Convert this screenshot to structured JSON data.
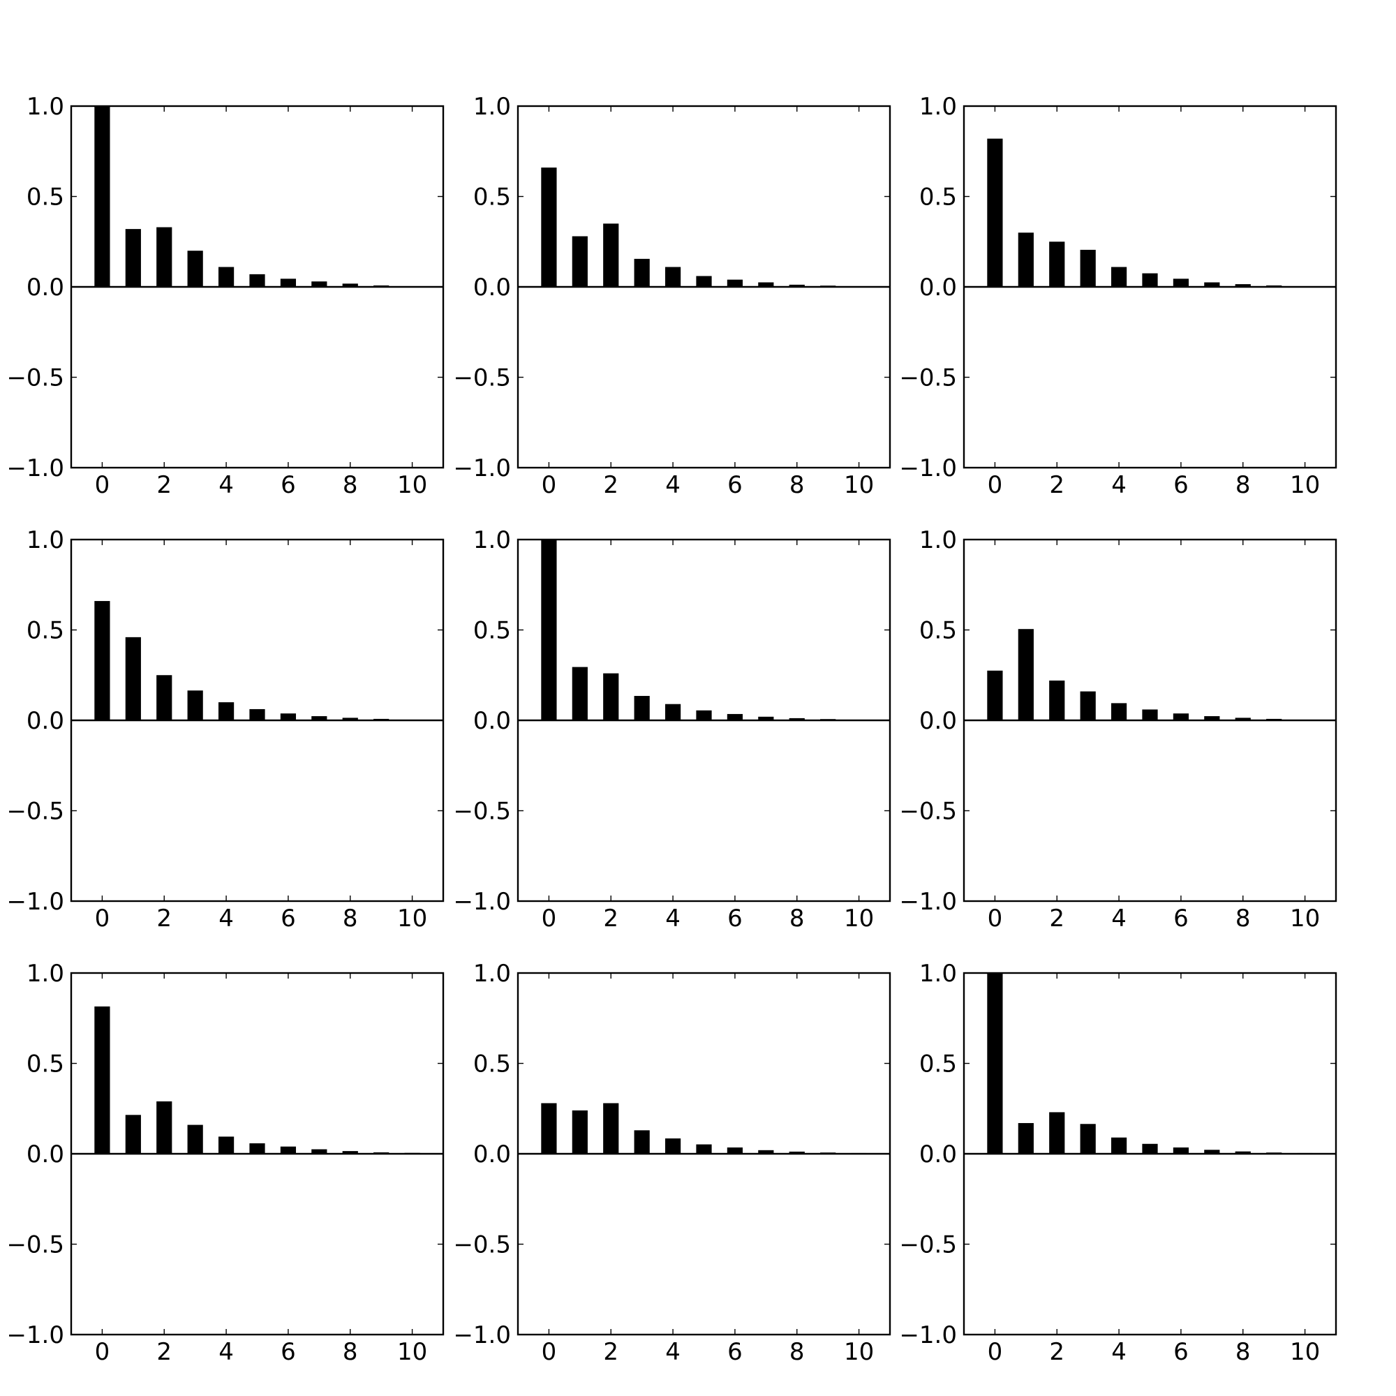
{
  "chart_data": [
    {
      "type": "bar",
      "categories": [
        0,
        1,
        2,
        3,
        4,
        5,
        6,
        7,
        8,
        9,
        10
      ],
      "values": [
        1.0,
        0.32,
        0.33,
        0.2,
        0.11,
        0.07,
        0.045,
        0.03,
        0.018,
        0.008,
        0.002
      ],
      "xticks": [
        "0",
        "2",
        "4",
        "6",
        "8",
        "10"
      ],
      "yticks": [
        "1.0",
        "0.5",
        "0.0",
        "−0.5",
        "−1.0"
      ],
      "xlim": [
        -1,
        11
      ],
      "ylim": [
        -1,
        1
      ],
      "grid": false
    },
    {
      "type": "bar",
      "categories": [
        0,
        1,
        2,
        3,
        4,
        5,
        6,
        7,
        8,
        9,
        10
      ],
      "values": [
        0.66,
        0.28,
        0.35,
        0.155,
        0.11,
        0.06,
        0.04,
        0.025,
        0.012,
        0.007,
        0.002
      ],
      "xticks": [
        "0",
        "2",
        "4",
        "6",
        "8",
        "10"
      ],
      "yticks": [
        "1.0",
        "0.5",
        "0.0",
        "−0.5",
        "−1.0"
      ],
      "xlim": [
        -1,
        11
      ],
      "ylim": [
        -1,
        1
      ],
      "grid": false
    },
    {
      "type": "bar",
      "categories": [
        0,
        1,
        2,
        3,
        4,
        5,
        6,
        7,
        8,
        9,
        10
      ],
      "values": [
        0.82,
        0.3,
        0.25,
        0.205,
        0.11,
        0.075,
        0.045,
        0.025,
        0.015,
        0.008,
        0.002
      ],
      "xticks": [
        "0",
        "2",
        "4",
        "6",
        "8",
        "10"
      ],
      "yticks": [
        "1.0",
        "0.5",
        "0.0",
        "−0.5",
        "−1.0"
      ],
      "xlim": [
        -1,
        11
      ],
      "ylim": [
        -1,
        1
      ],
      "grid": false
    },
    {
      "type": "bar",
      "categories": [
        0,
        1,
        2,
        3,
        4,
        5,
        6,
        7,
        8,
        9,
        10
      ],
      "values": [
        0.66,
        0.46,
        0.25,
        0.165,
        0.1,
        0.062,
        0.038,
        0.023,
        0.014,
        0.008,
        0.002
      ],
      "xticks": [
        "0",
        "2",
        "4",
        "6",
        "8",
        "10"
      ],
      "yticks": [
        "1.0",
        "0.5",
        "0.0",
        "−0.5",
        "−1.0"
      ],
      "xlim": [
        -1,
        11
      ],
      "ylim": [
        -1,
        1
      ],
      "grid": false
    },
    {
      "type": "bar",
      "categories": [
        0,
        1,
        2,
        3,
        4,
        5,
        6,
        7,
        8,
        9,
        10
      ],
      "values": [
        1.0,
        0.295,
        0.26,
        0.135,
        0.09,
        0.055,
        0.035,
        0.02,
        0.012,
        0.007,
        0.002
      ],
      "xticks": [
        "0",
        "2",
        "4",
        "6",
        "8",
        "10"
      ],
      "yticks": [
        "1.0",
        "0.5",
        "0.0",
        "−0.5",
        "−1.0"
      ],
      "xlim": [
        -1,
        11
      ],
      "ylim": [
        -1,
        1
      ],
      "grid": false
    },
    {
      "type": "bar",
      "categories": [
        0,
        1,
        2,
        3,
        4,
        5,
        6,
        7,
        8,
        9,
        10
      ],
      "values": [
        0.275,
        0.505,
        0.22,
        0.16,
        0.095,
        0.06,
        0.038,
        0.023,
        0.014,
        0.008,
        0.002
      ],
      "xticks": [
        "0",
        "2",
        "4",
        "6",
        "8",
        "10"
      ],
      "yticks": [
        "1.0",
        "0.5",
        "0.0",
        "−0.5",
        "−1.0"
      ],
      "xlim": [
        -1,
        11
      ],
      "ylim": [
        -1,
        1
      ],
      "grid": false
    },
    {
      "type": "bar",
      "categories": [
        0,
        1,
        2,
        3,
        4,
        5,
        6,
        7,
        8,
        9,
        10
      ],
      "values": [
        0.815,
        0.215,
        0.29,
        0.16,
        0.095,
        0.058,
        0.04,
        0.025,
        0.015,
        0.008,
        0.005
      ],
      "xticks": [
        "0",
        "2",
        "4",
        "6",
        "8",
        "10"
      ],
      "yticks": [
        "1.0",
        "0.5",
        "0.0",
        "−0.5",
        "−1.0"
      ],
      "xlim": [
        -1,
        11
      ],
      "ylim": [
        -1,
        1
      ],
      "grid": false
    },
    {
      "type": "bar",
      "categories": [
        0,
        1,
        2,
        3,
        4,
        5,
        6,
        7,
        8,
        9,
        10
      ],
      "values": [
        0.28,
        0.24,
        0.28,
        0.13,
        0.085,
        0.052,
        0.035,
        0.02,
        0.012,
        0.007,
        0.004
      ],
      "xticks": [
        "0",
        "2",
        "4",
        "6",
        "8",
        "10"
      ],
      "yticks": [
        "1.0",
        "0.5",
        "0.0",
        "−0.5",
        "−1.0"
      ],
      "xlim": [
        -1,
        11
      ],
      "ylim": [
        -1,
        1
      ],
      "grid": false
    },
    {
      "type": "bar",
      "categories": [
        0,
        1,
        2,
        3,
        4,
        5,
        6,
        7,
        8,
        9,
        10
      ],
      "values": [
        1.0,
        0.17,
        0.23,
        0.165,
        0.09,
        0.055,
        0.035,
        0.022,
        0.013,
        0.007,
        0.004
      ],
      "xticks": [
        "0",
        "2",
        "4",
        "6",
        "8",
        "10"
      ],
      "yticks": [
        "1.0",
        "0.5",
        "0.0",
        "−0.5",
        "−1.0"
      ],
      "xlim": [
        -1,
        11
      ],
      "ylim": [
        -1,
        1
      ],
      "grid": false
    }
  ]
}
